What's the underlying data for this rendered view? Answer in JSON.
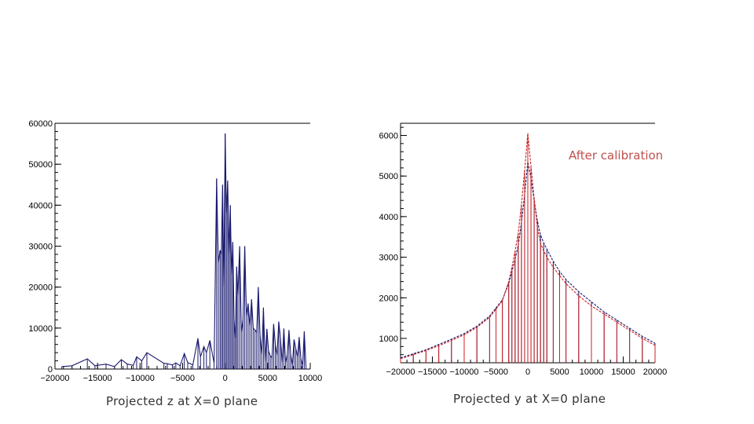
{
  "captions": {
    "left": "Projected z at X=0 plane",
    "right": "Projected y at X=0 plane"
  },
  "annotation": "After calibration",
  "colors": {
    "navy": "#1a1a6e",
    "red": "#cc2222",
    "annotation": "#c0504d"
  },
  "chart_data": [
    {
      "type": "histogram",
      "xlabel": "Projected z at X=0 plane",
      "xlim": [
        -20000,
        10000
      ],
      "ylim": [
        0,
        60000
      ],
      "xticks": [
        -20000,
        -15000,
        -10000,
        -5000,
        0,
        5000,
        10000
      ],
      "yticks": [
        0,
        10000,
        20000,
        30000,
        40000,
        50000,
        60000
      ],
      "series": [
        {
          "color": "navy",
          "x": [
            -19200,
            -18000,
            -16200,
            -15300,
            -14000,
            -13000,
            -12200,
            -11500,
            -10800,
            -10400,
            -9800,
            -9200,
            -7200,
            -6800,
            -6200,
            -5800,
            -5300,
            -4800,
            -4400,
            -3800,
            -3200,
            -2900,
            -2500,
            -2200,
            -1800,
            -1300,
            -1000,
            -800,
            -600,
            -450,
            -300,
            -150,
            0,
            150,
            300,
            450,
            600,
            750,
            900,
            1050,
            1200,
            1350,
            1500,
            1700,
            1900,
            2100,
            2300,
            2500,
            2700,
            2900,
            3100,
            3300,
            3500,
            3700,
            3900,
            4100,
            4300,
            4500,
            4700,
            4900,
            5100,
            5300,
            5500,
            5700,
            5900,
            6100,
            6300,
            6500,
            6700,
            6900,
            7100,
            7300,
            7500,
            7700,
            7900,
            8100,
            8300,
            8500,
            8700,
            8900,
            9100,
            9300,
            9500
          ],
          "y": [
            600,
            800,
            2500,
            800,
            1200,
            600,
            2300,
            1200,
            900,
            3000,
            2000,
            4000,
            1400,
            1300,
            1000,
            1500,
            800,
            3800,
            1600,
            1000,
            7500,
            3000,
            5500,
            4000,
            7000,
            1400,
            46500,
            26000,
            29000,
            28000,
            45000,
            20000,
            57500,
            38000,
            46000,
            28000,
            40000,
            23000,
            31000,
            12000,
            7500,
            25000,
            18000,
            30000,
            9000,
            12000,
            30000,
            13000,
            16000,
            10500,
            17000,
            10000,
            9500,
            9000,
            20000,
            8200,
            3500,
            15000,
            1800,
            9800,
            4500,
            3200,
            2800,
            11000,
            6000,
            3300,
            11600,
            7500,
            1500,
            9900,
            1600,
            3500,
            9500,
            3500,
            1000,
            7200,
            5000,
            3000,
            7800,
            2500,
            800,
            9200,
            500
          ]
        }
      ]
    },
    {
      "type": "histogram",
      "xlabel": "Projected y at X=0 plane",
      "xlim": [
        -20000,
        20000
      ],
      "ylim": [
        400,
        6300
      ],
      "xticks": [
        -20000,
        -15000,
        -10000,
        -5000,
        0,
        5000,
        10000,
        15000,
        20000
      ],
      "yticks": [
        1000,
        2000,
        3000,
        4000,
        5000,
        6000
      ],
      "series": [
        {
          "color": "navy",
          "x": [
            -20000,
            -18000,
            -16000,
            -14000,
            -12000,
            -10000,
            -8000,
            -6000,
            -5000,
            -4000,
            -3000,
            -2500,
            -2000,
            -1500,
            -1000,
            -500,
            0,
            500,
            1000,
            1500,
            2000,
            2500,
            3000,
            4000,
            5000,
            6000,
            8000,
            10000,
            12000,
            14000,
            16000,
            18000,
            20000
          ],
          "y": [
            520,
            620,
            720,
            850,
            980,
            1120,
            1300,
            1550,
            1750,
            1950,
            2350,
            2650,
            2950,
            3300,
            3850,
            4550,
            5350,
            4950,
            4400,
            3900,
            3550,
            3350,
            3200,
            2900,
            2650,
            2450,
            2150,
            1900,
            1650,
            1450,
            1250,
            1050,
            880
          ]
        },
        {
          "color": "red",
          "x": [
            -20000,
            -18000,
            -16000,
            -14000,
            -12000,
            -10000,
            -8000,
            -6000,
            -5000,
            -4000,
            -3000,
            -2500,
            -2000,
            -1500,
            -1000,
            -500,
            0,
            500,
            1000,
            1500,
            2000,
            2500,
            3000,
            4000,
            5000,
            6000,
            8000,
            10000,
            12000,
            14000,
            16000,
            18000,
            20000
          ],
          "y": [
            500,
            600,
            700,
            820,
            950,
            1090,
            1270,
            1520,
            1720,
            1930,
            2400,
            2750,
            3150,
            3600,
            4300,
            5150,
            6050,
            5250,
            4450,
            3750,
            3350,
            3150,
            3000,
            2750,
            2550,
            2350,
            2050,
            1800,
            1600,
            1400,
            1200,
            1000,
            830
          ]
        }
      ]
    }
  ]
}
